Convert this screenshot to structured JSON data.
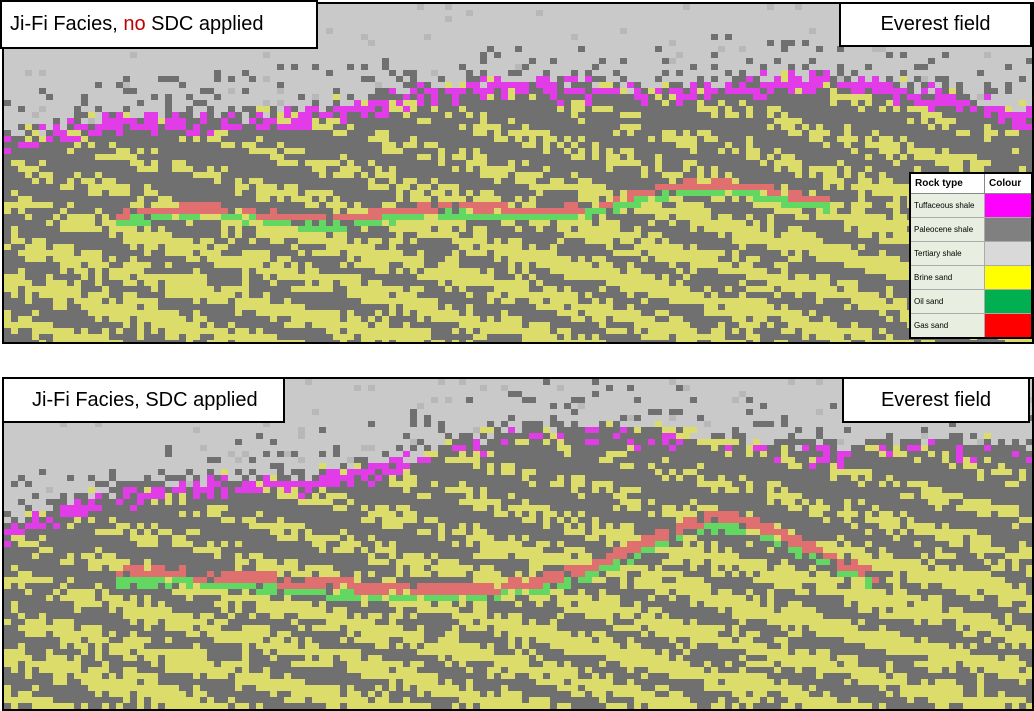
{
  "panels": [
    {
      "title": [
        "Ji-Fi Facies, ",
        "no",
        " SDC applied"
      ],
      "label": "Everest field"
    },
    {
      "title": [
        "Ji-Fi Facies, SDC applied"
      ],
      "label": "Everest field"
    }
  ],
  "legend": {
    "header": [
      "Rock type",
      "Colour"
    ],
    "rows": [
      {
        "label": "Tuffaceous shale",
        "color": "#ff00ff"
      },
      {
        "label": "Paleocene shale",
        "color": "#808080"
      },
      {
        "label": "Tertiary shale",
        "color": "#d9d9d9"
      },
      {
        "label": "Brine sand",
        "color": "#ffff00"
      },
      {
        "label": "Oil sand",
        "color": "#00b050"
      },
      {
        "label": "Gas sand",
        "color": "#ff0000"
      }
    ]
  }
}
